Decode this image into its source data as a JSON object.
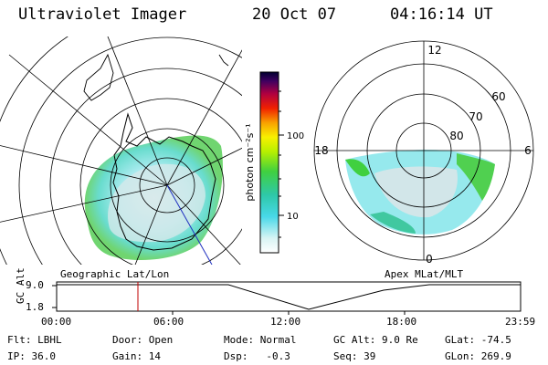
{
  "header": {
    "instrument": "Ultraviolet Imager",
    "date": "20 Oct 07",
    "time": "04:16:14 UT"
  },
  "left_panel": {
    "caption": "Geographic Lat/Lon"
  },
  "right_panel": {
    "caption": "Apex MLat/MLT",
    "mlt_labels": {
      "top": "12",
      "right": "6",
      "bottom": "0",
      "left": "18"
    },
    "lat_labels": [
      "60",
      "70",
      "80"
    ]
  },
  "colorbar": {
    "unit_label": "photon cm⁻²s⁻¹",
    "ticks": [
      "100",
      "10"
    ],
    "scale": "log"
  },
  "altitude_plot": {
    "ylabel": "GC Alt",
    "yticks": [
      "9.0",
      "1.8"
    ],
    "xticks": [
      "00:00",
      "06:00",
      "12:00",
      "18:00",
      "23:59"
    ],
    "marker_time": "04:16",
    "marker_color": "#c00000"
  },
  "footer": {
    "flt": "Flt: LBHL",
    "ip": "IP: 36.0",
    "door": "Door: Open",
    "gain": "Gain: 14",
    "mode": "Mode: Normal",
    "dsp": "Dsp:   -0.3",
    "gcalt": "GC Alt: 9.0 Re",
    "seq": "Seq: 39",
    "glat": "GLat: -74.5",
    "glon": "GLon: 269.9"
  }
}
